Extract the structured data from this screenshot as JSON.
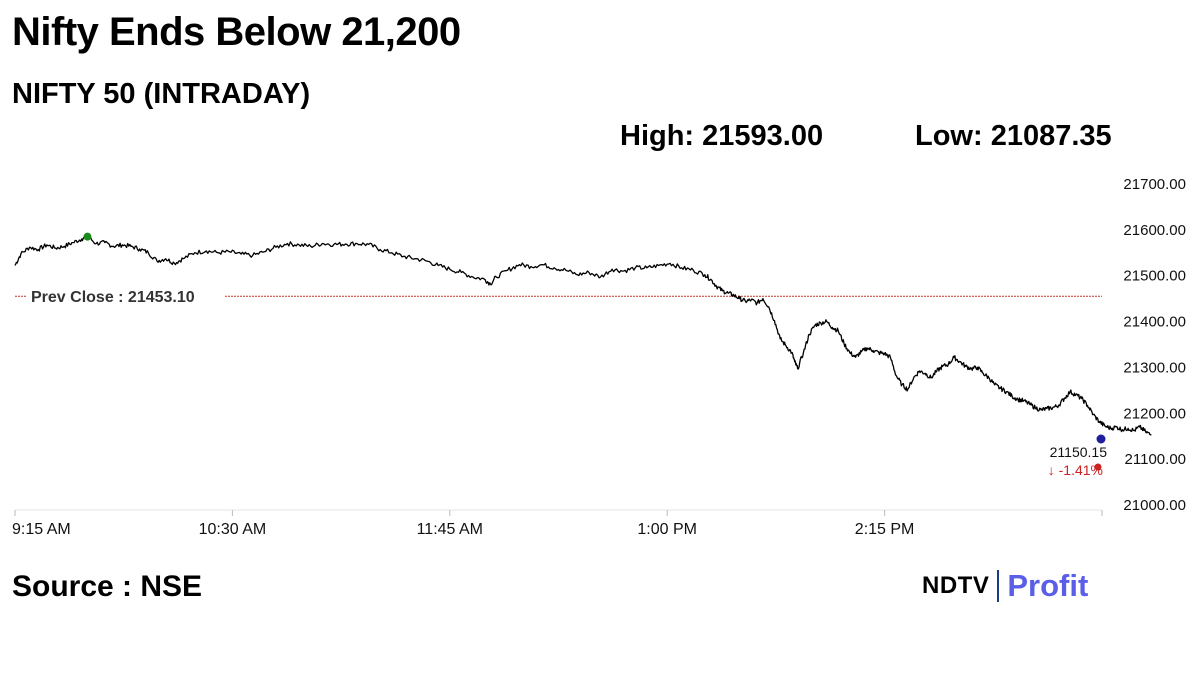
{
  "headline": "Nifty Ends Below 21,200",
  "subtitle": "NIFTY 50 (INTRADAY)",
  "stats": {
    "high": "High: 21593.00",
    "low": "Low: 21087.35"
  },
  "source": "Source : NSE",
  "brand": {
    "ndtv": "NDTV",
    "profit": "Profit"
  },
  "colors": {
    "line": "#000000",
    "prev_close": "#c0392b",
    "high_marker": "#1a8a1a",
    "low_marker": "#cc2222",
    "last_marker": "#1f1f9e",
    "change_text": "#cc2222",
    "grid": "#e6e6e6"
  },
  "chart_data": {
    "type": "line",
    "title": "NIFTY 50 (INTRADAY)",
    "xlabel": "",
    "ylabel": "",
    "ylim": [
      21000,
      21700
    ],
    "yticks": [
      "21700.00",
      "21600.00",
      "21500.00",
      "21400.00",
      "21300.00",
      "21200.00",
      "21100.00",
      "21000.00"
    ],
    "xticks": [
      {
        "label": "9:15 AM",
        "t": 0
      },
      {
        "label": "10:30 AM",
        "t": 75
      },
      {
        "label": "11:45 AM",
        "t": 150
      },
      {
        "label": "1:00 PM",
        "t": 225
      },
      {
        "label": "2:15 PM",
        "t": 300
      }
    ],
    "x_unit": "minutes since 9:15 AM",
    "prev_close": {
      "value": 21453.1,
      "label": "Prev Close : 21453.10"
    },
    "last": {
      "value": 21150.15,
      "label": "21150.15",
      "change": "↓ -1.41%"
    },
    "high_point": {
      "t": 25,
      "value": 21583
    },
    "series": [
      {
        "values": [
          [
            0,
            21520
          ],
          [
            2,
            21545
          ],
          [
            5,
            21560
          ],
          [
            8,
            21555
          ],
          [
            11,
            21565
          ],
          [
            14,
            21558
          ],
          [
            17,
            21562
          ],
          [
            20,
            21570
          ],
          [
            23,
            21578
          ],
          [
            25,
            21583
          ],
          [
            28,
            21568
          ],
          [
            31,
            21570
          ],
          [
            34,
            21562
          ],
          [
            37,
            21565
          ],
          [
            40,
            21562
          ],
          [
            43,
            21556
          ],
          [
            46,
            21548
          ],
          [
            49,
            21530
          ],
          [
            52,
            21535
          ],
          [
            55,
            21525
          ],
          [
            58,
            21535
          ],
          [
            62,
            21548
          ],
          [
            66,
            21552
          ],
          [
            70,
            21548
          ],
          [
            74,
            21550
          ],
          [
            78,
            21545
          ],
          [
            82,
            21542
          ],
          [
            86,
            21550
          ],
          [
            90,
            21560
          ],
          [
            94,
            21568
          ],
          [
            98,
            21565
          ],
          [
            102,
            21562
          ],
          [
            106,
            21568
          ],
          [
            110,
            21566
          ],
          [
            114,
            21567
          ],
          [
            118,
            21568
          ],
          [
            122,
            21566
          ],
          [
            126,
            21555
          ],
          [
            130,
            21548
          ],
          [
            134,
            21540
          ],
          [
            138,
            21535
          ],
          [
            142,
            21530
          ],
          [
            146,
            21520
          ],
          [
            150,
            21512
          ],
          [
            154,
            21505
          ],
          [
            158,
            21495
          ],
          [
            162,
            21490
          ],
          [
            164,
            21480
          ],
          [
            166,
            21495
          ],
          [
            170,
            21510
          ],
          [
            174,
            21522
          ],
          [
            178,
            21518
          ],
          [
            182,
            21522
          ],
          [
            186,
            21515
          ],
          [
            190,
            21510
          ],
          [
            194,
            21500
          ],
          [
            198,
            21505
          ],
          [
            202,
            21495
          ],
          [
            206,
            21512
          ],
          [
            210,
            21508
          ],
          [
            214,
            21515
          ],
          [
            218,
            21515
          ],
          [
            222,
            21520
          ],
          [
            226,
            21525
          ],
          [
            230,
            21515
          ],
          [
            234,
            21510
          ],
          [
            238,
            21500
          ],
          [
            240,
            21490
          ],
          [
            242,
            21475
          ],
          [
            244,
            21465
          ],
          [
            246,
            21460
          ],
          [
            248,
            21455
          ],
          [
            250,
            21448
          ],
          [
            252,
            21442
          ],
          [
            254,
            21445
          ],
          [
            256,
            21438
          ],
          [
            258,
            21448
          ],
          [
            260,
            21430
          ],
          [
            262,
            21400
          ],
          [
            264,
            21360
          ],
          [
            266,
            21345
          ],
          [
            268,
            21330
          ],
          [
            269,
            21310
          ],
          [
            270,
            21295
          ],
          [
            272,
            21330
          ],
          [
            274,
            21370
          ],
          [
            276,
            21390
          ],
          [
            278,
            21395
          ],
          [
            280,
            21398
          ],
          [
            282,
            21385
          ],
          [
            284,
            21378
          ],
          [
            286,
            21350
          ],
          [
            288,
            21330
          ],
          [
            290,
            21320
          ],
          [
            292,
            21332
          ],
          [
            294,
            21340
          ],
          [
            296,
            21335
          ],
          [
            298,
            21330
          ],
          [
            300,
            21328
          ],
          [
            302,
            21320
          ],
          [
            304,
            21280
          ],
          [
            306,
            21260
          ],
          [
            308,
            21250
          ],
          [
            310,
            21275
          ],
          [
            312,
            21290
          ],
          [
            314,
            21285
          ],
          [
            316,
            21275
          ],
          [
            318,
            21290
          ],
          [
            320,
            21300
          ],
          [
            322,
            21305
          ],
          [
            324,
            21320
          ],
          [
            326,
            21310
          ],
          [
            328,
            21300
          ],
          [
            330,
            21295
          ],
          [
            332,
            21298
          ],
          [
            334,
            21285
          ],
          [
            336,
            21275
          ],
          [
            338,
            21260
          ],
          [
            340,
            21252
          ],
          [
            342,
            21245
          ],
          [
            344,
            21235
          ],
          [
            346,
            21228
          ],
          [
            348,
            21225
          ],
          [
            350,
            21218
          ],
          [
            352,
            21210
          ],
          [
            354,
            21205
          ],
          [
            356,
            21208
          ],
          [
            358,
            21210
          ],
          [
            360,
            21215
          ],
          [
            362,
            21230
          ],
          [
            364,
            21245
          ],
          [
            366,
            21238
          ],
          [
            368,
            21230
          ],
          [
            370,
            21215
          ],
          [
            372,
            21195
          ],
          [
            374,
            21180
          ],
          [
            376,
            21170
          ],
          [
            378,
            21165
          ],
          [
            380,
            21168
          ],
          [
            382,
            21162
          ],
          [
            384,
            21165
          ],
          [
            386,
            21160
          ],
          [
            388,
            21168
          ],
          [
            390,
            21158
          ],
          [
            392,
            21150
          ]
        ]
      }
    ]
  }
}
